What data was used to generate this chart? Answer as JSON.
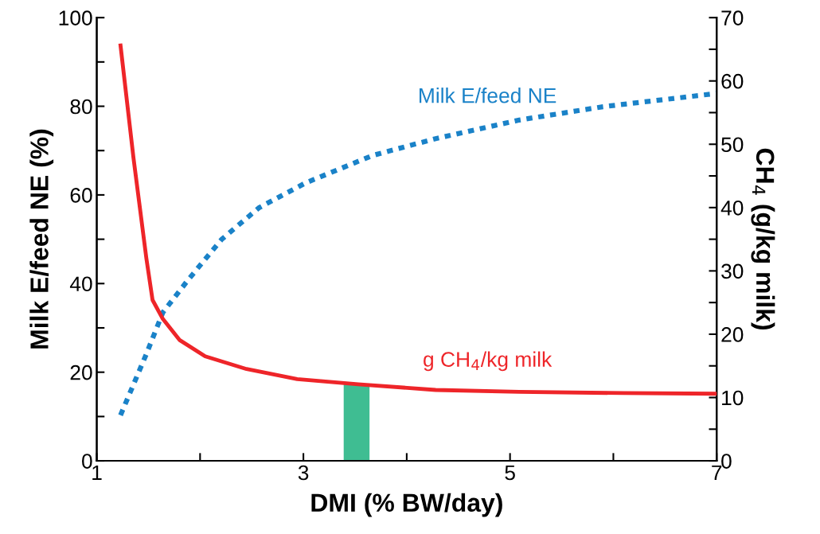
{
  "chart_data": {
    "type": "line",
    "xlabel": "DMI (% BW/day)",
    "ylabel": "Milk E/feed NE (%)",
    "y2label": "CH$_{4}$ (g/kg milk)",
    "xlim": [
      1,
      7
    ],
    "xticks": [
      1,
      {
        "value": 2,
        "label": null
      },
      3,
      {
        "value": 4,
        "label": null
      },
      5,
      {
        "value": 6,
        "label": null
      },
      7
    ],
    "ylim": [
      0,
      100
    ],
    "yticks": [
      0,
      {
        "value": 10,
        "label": null
      },
      20,
      {
        "value": 30,
        "label": null
      },
      40,
      {
        "value": 50,
        "label": null
      },
      60,
      {
        "value": 70,
        "label": null
      },
      80,
      {
        "value": 90,
        "label": null
      },
      100
    ],
    "y2lim": [
      0,
      70
    ],
    "y2ticks": [
      0,
      {
        "value": 5,
        "label": null
      },
      10,
      {
        "value": 15,
        "label": null
      },
      20,
      {
        "value": 25,
        "label": null
      },
      30,
      {
        "value": 35,
        "label": null
      },
      40,
      {
        "value": 45,
        "label": null
      },
      50,
      {
        "value": 55,
        "label": null
      },
      60,
      {
        "value": 65,
        "label": null
      },
      70
    ],
    "grid": false,
    "legend": false,
    "marker": "none",
    "series": [
      {
        "name": "Milk E/feed NE",
        "color": "#1a82c8",
        "line_style": "dotted",
        "x": [
          1.23,
          1.48,
          1.64,
          1.89,
          2.21,
          2.57,
          3.02,
          3.67,
          4.28,
          5.09,
          5.9,
          7
        ],
        "values": [
          10.3,
          24.1,
          33.5,
          41.0,
          50.0,
          57.1,
          62.7,
          68.9,
          72.7,
          76.9,
          79.9,
          82.9
        ]
      },
      {
        "name": "g CH$_{4}$/kg milk",
        "color": "#ee2529",
        "line_style": "solid",
        "axis": "y2",
        "x": [
          1.23,
          1.355,
          1.48,
          1.54,
          1.64,
          1.8,
          2.05,
          2.45,
          2.94,
          3.53,
          4.28,
          5.09,
          6.1,
          7
        ],
        "values": [
          65.6,
          47.9,
          32.0,
          25.4,
          22.4,
          19.1,
          16.5,
          14.5,
          12.9,
          12.1,
          11.2,
          10.9,
          10.7,
          10.6
        ]
      }
    ],
    "bands": [
      {
        "axis": "x",
        "from": 3.39,
        "to": 3.64,
        "color": "#3fbd92"
      }
    ]
  }
}
